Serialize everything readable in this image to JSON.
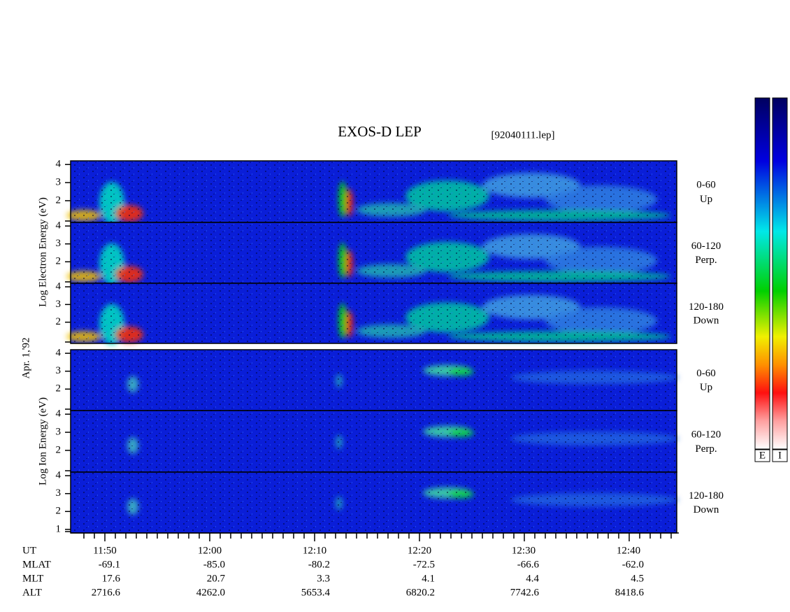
{
  "header": {
    "title": "EXOS-D LEP",
    "file": "[92040111.lep]"
  },
  "electron": {
    "axis_label": "Log Electron Energy (eV)",
    "panels": [
      {
        "label": "0-60",
        "direction": "Up",
        "yticks": [
          4,
          3,
          2
        ]
      },
      {
        "label": "60-120",
        "direction": "Perp.",
        "yticks": [
          4,
          3,
          2
        ]
      },
      {
        "label": "120-180",
        "direction": "Down",
        "yticks": [
          4,
          3,
          2
        ]
      }
    ]
  },
  "date": "Apr. 1,'92",
  "ion": {
    "axis_label": "Log Ion Energy (eV)",
    "panels": [
      {
        "label": "0-60",
        "direction": "Up",
        "yticks": [
          4,
          3,
          2
        ]
      },
      {
        "label": "60-120",
        "direction": "Perp.",
        "yticks": [
          4,
          3,
          2
        ]
      },
      {
        "label": "120-180",
        "direction": "Down",
        "yticks": [
          4,
          3,
          2,
          1
        ]
      }
    ]
  },
  "orbit": {
    "rows": [
      {
        "label": "UT",
        "values": [
          "11:50",
          "12:00",
          "12:10",
          "12:20",
          "12:30",
          "12:40"
        ]
      },
      {
        "label": "MLAT",
        "values": [
          "-69.1",
          "-85.0",
          "-80.2",
          "-72.5",
          "-66.6",
          "-62.0"
        ]
      },
      {
        "label": "MLT",
        "values": [
          "17.6",
          "20.7",
          "3.3",
          "4.1",
          "4.4",
          "4.5"
        ]
      },
      {
        "label": "ALT",
        "values": [
          "2716.6",
          "4262.0",
          "5653.4",
          "6820.2",
          "7742.6",
          "8418.6"
        ]
      }
    ]
  },
  "colorbar_labels": [
    "E",
    "I"
  ]
}
